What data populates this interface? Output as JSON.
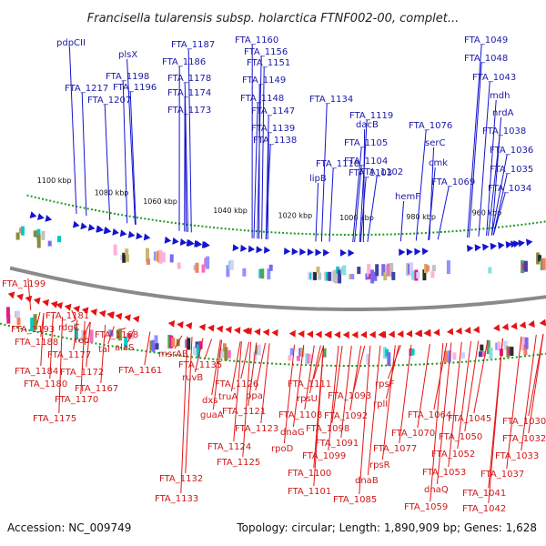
{
  "title": "Francisella tularensis subsp. holarctica FTNF002-00, complet...",
  "footer": {
    "accession": "Accession: NC_009749",
    "stats": "Topology: circular; Length: 1,890,909 bp; Genes: 1,628"
  },
  "colors": {
    "top_strand": "#1414d2",
    "bottom_strand": "#e41414",
    "top_label": "#1a1aa6",
    "bottom_label": "#d01818",
    "backbone": "#8a8a8a",
    "tick_dot": "#1e9a1e"
  },
  "scale_ticks": [
    "1100 kbp",
    "1080 kbp",
    "1060 kbp",
    "1040 kbp",
    "1020 kbp",
    "1000 kbp",
    "980 kbp",
    "960 kbp"
  ],
  "top_labels": [
    "pdpCII",
    "plsX",
    "FTA_1187",
    "FTA_1186",
    "FTA_1198",
    "FTA_1196",
    "FTA_1217",
    "FTA_1207",
    "FTA_1178",
    "FTA_1174",
    "FTA_1173",
    "FTA_1160",
    "FTA_1156",
    "FTA_1151",
    "FTA_1149",
    "FTA_1148",
    "FTA_1147",
    "FTA_1139",
    "FTA_1138",
    "FTA_1134",
    "FTA_1118",
    "lipB",
    "FTA_1119",
    "dacB",
    "FTA_1105",
    "FTA_1104",
    "FTA_1103",
    "FTA_1102",
    "FTA_1076",
    "serC",
    "cmk",
    "FTA_1069",
    "hemF",
    "FTA_1049",
    "FTA_1048",
    "FTA_1043",
    "mdh",
    "nrdA",
    "FTA_1038",
    "FTA_1036",
    "FTA_1035",
    "FTA_1034"
  ],
  "bottom_labels": [
    "FTA_1199",
    "FTA_1181",
    "FTA_1193",
    "rdgC",
    "FTA_1188",
    "rep",
    "FTA_1177",
    "FTA_1168",
    "tal",
    "alaS",
    "FTA_1184",
    "FTA_1172",
    "FTA_1161",
    "FTA_1180",
    "FTA_1167",
    "FTA_1170",
    "FTA_1175",
    "msrAB",
    "FTA_1135",
    "ruvB",
    "FTA_1126",
    "dxs",
    "ppa",
    "truA",
    "guaA",
    "FTA_1121",
    "FTA_1123",
    "FTA_1124",
    "FTA_1125",
    "FTA_1132",
    "FTA_1133",
    "FTA_1111",
    "rpsU",
    "FTA_1108",
    "dnaG",
    "rpoD",
    "FTA_1099",
    "FTA_1100",
    "FTA_1101",
    "FTA_1093",
    "FTA_1092",
    "FTA_1098",
    "FTA_1091",
    "rpsF",
    "rplI",
    "rpsR",
    "dnaB",
    "FTA_1085",
    "FTA_1077",
    "FTA_1064",
    "FTA_1070",
    "FTA_1045",
    "FTA_1050",
    "FTA_1052",
    "FTA_1053",
    "dnaQ",
    "FTA_1059",
    "FTA_1041",
    "FTA_1042",
    "FTA_1030",
    "FTA_1032",
    "FTA_1033",
    "FTA_1037"
  ]
}
